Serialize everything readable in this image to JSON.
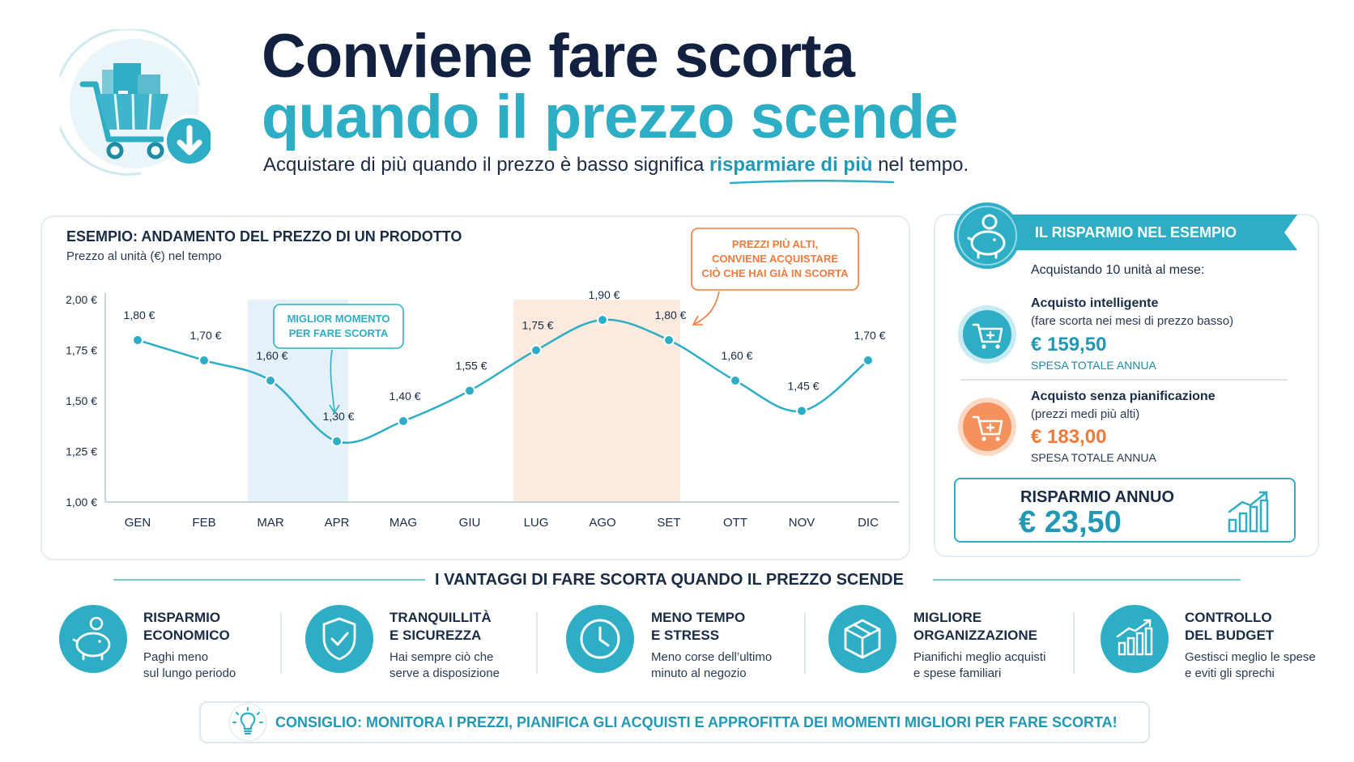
{
  "header": {
    "title_line1": "Conviene fare scorta",
    "title_line2": "quando il prezzo scende",
    "subtitle_before": "Acquistare di più quando il prezzo è basso significa ",
    "subtitle_highlight": "risparmiare di più",
    "subtitle_after": " nel tempo."
  },
  "chart": {
    "title": "ESEMPIO: ANDAMENTO DEL PREZZO DI UN PRODOTTO",
    "subtitle": "Prezzo al unità (€) nel tempo"
  },
  "chart_data": {
    "type": "line",
    "categories": [
      "GEN",
      "FEB",
      "MAR",
      "APR",
      "MAG",
      "GIU",
      "LUG",
      "AGO",
      "SET",
      "OTT",
      "NOV",
      "DIC"
    ],
    "values": [
      1.8,
      1.7,
      1.6,
      1.3,
      1.4,
      1.55,
      1.75,
      1.9,
      1.8,
      1.6,
      1.45,
      1.7
    ],
    "data_labels": [
      "1,80 €",
      "1,70 €",
      "1,60 €",
      "1,30 €",
      "1,40 €",
      "1,55 €",
      "1,75 €",
      "1,90 €",
      "1,80 €",
      "1,60 €",
      "1,45 €",
      "1,70 €"
    ],
    "yticks": [
      2.0,
      1.75,
      1.5,
      1.25,
      1.0
    ],
    "ytick_labels": [
      "2,00 €",
      "1,75 €",
      "1,50 €",
      "1,25 €",
      "1,00 €"
    ],
    "ylim": [
      1.0,
      2.0
    ],
    "grid": false,
    "series_color": "#2eaec5",
    "highlights": [
      {
        "from": "MAR",
        "to": "APR",
        "color": "#e4f1f8"
      },
      {
        "from": "LUG",
        "to": "SET",
        "color": "#fdeade"
      }
    ],
    "annotations": [
      {
        "lines": [
          "MIGLIOR MOMENTO",
          "PER FARE SCORTA"
        ],
        "target": "APR",
        "color": "#2eaec5"
      },
      {
        "lines": [
          "PREZZI PIÙ ALTI,",
          "CONVIENE ACQUISTARE",
          "CIÒ CHE HAI GIÀ IN SCORTA"
        ],
        "target": "SET",
        "color": "#f07a3c"
      }
    ]
  },
  "savings": {
    "ribbon": "IL RISPARMIO NEL ESEMPIO",
    "intro": "Acquistando 10 unità al mese:",
    "smart": {
      "title": "Acquisto intelligente",
      "note": "(fare scorta nei mesi di prezzo basso)",
      "amount": "€ 159,50",
      "label": "SPESA TOTALE ANNUA",
      "color": "#2eaec5"
    },
    "unplanned": {
      "title": "Acquisto senza pianificazione",
      "note": "(prezzi medi più alti)",
      "amount": "€ 183,00",
      "label": "SPESA TOTALE ANNUA",
      "color": "#f07a3c"
    },
    "annual_label": "RISPARMIO ANNUO",
    "annual_value": "€ 23,50"
  },
  "advantages": {
    "title": "I VANTAGGI DI FARE SCORTA QUANDO IL PREZZO SCENDE",
    "items": [
      {
        "icon": "piggy-bank-icon",
        "line1": "RISPARMIO",
        "line2": "ECONOMICO",
        "desc1": "Paghi meno",
        "desc2": "sul lungo periodo"
      },
      {
        "icon": "shield-check-icon",
        "line1": "TRANQUILLITÀ",
        "line2": "E SICUREZZA",
        "desc1": "Hai sempre ciò che",
        "desc2": "serve a disposizione"
      },
      {
        "icon": "clock-icon",
        "line1": "MENO TEMPO",
        "line2": "E STRESS",
        "desc1": "Meno corse dell’ultimo",
        "desc2": "minuto al negozio"
      },
      {
        "icon": "box-icon",
        "line1": "MIGLIORE",
        "line2": "ORGANIZZAZIONE",
        "desc1": "Pianifichi meglio acquisti",
        "desc2": "e spese familiari"
      },
      {
        "icon": "bar-chart-icon",
        "line1": "CONTROLLO",
        "line2": "DEL BUDGET",
        "desc1": "Gestisci meglio le spese",
        "desc2": "e eviti gli sprechi"
      }
    ]
  },
  "tip": {
    "icon": "lightbulb-icon",
    "text": "CONSIGLIO: MONITORA I PREZZI, PIANIFICA GLI ACQUISTI E APPROFITTA DEI MOMENTI MIGLIORI PER FARE SCORTA!"
  },
  "colors": {
    "teal": "#2eaec5",
    "navy": "#11213f",
    "orange": "#f07a3c",
    "light_teal_bg": "#e4f1f8",
    "light_orange_bg": "#fdeade"
  }
}
